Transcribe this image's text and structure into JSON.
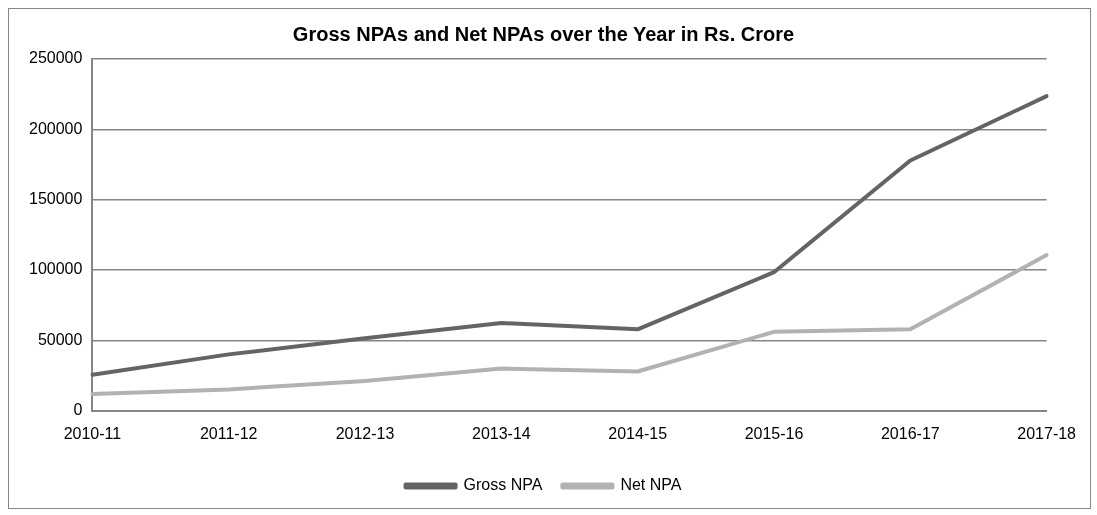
{
  "chart_data": {
    "type": "line",
    "title": "Gross NPAs and Net NPAs over the Year in Rs. Crore",
    "categories": [
      "2010-11",
      "2011-12",
      "2012-13",
      "2013-14",
      "2014-15",
      "2015-16",
      "2016-17",
      "2017-18"
    ],
    "series": [
      {
        "name": "Gross NPA",
        "color": "#646464",
        "values": [
          25600,
          40100,
          51500,
          62400,
          57900,
          98500,
          177900,
          223600
        ]
      },
      {
        "name": "Net NPA",
        "color": "#b2b2b2",
        "values": [
          11900,
          15200,
          21100,
          30000,
          27900,
          56100,
          57900,
          110700
        ]
      }
    ],
    "ylim": [
      0,
      250000
    ],
    "yticks": [
      0,
      50000,
      100000,
      150000,
      200000,
      250000
    ],
    "grid": "y",
    "legend": "bottom",
    "marker": "none",
    "line_style": "solid"
  }
}
